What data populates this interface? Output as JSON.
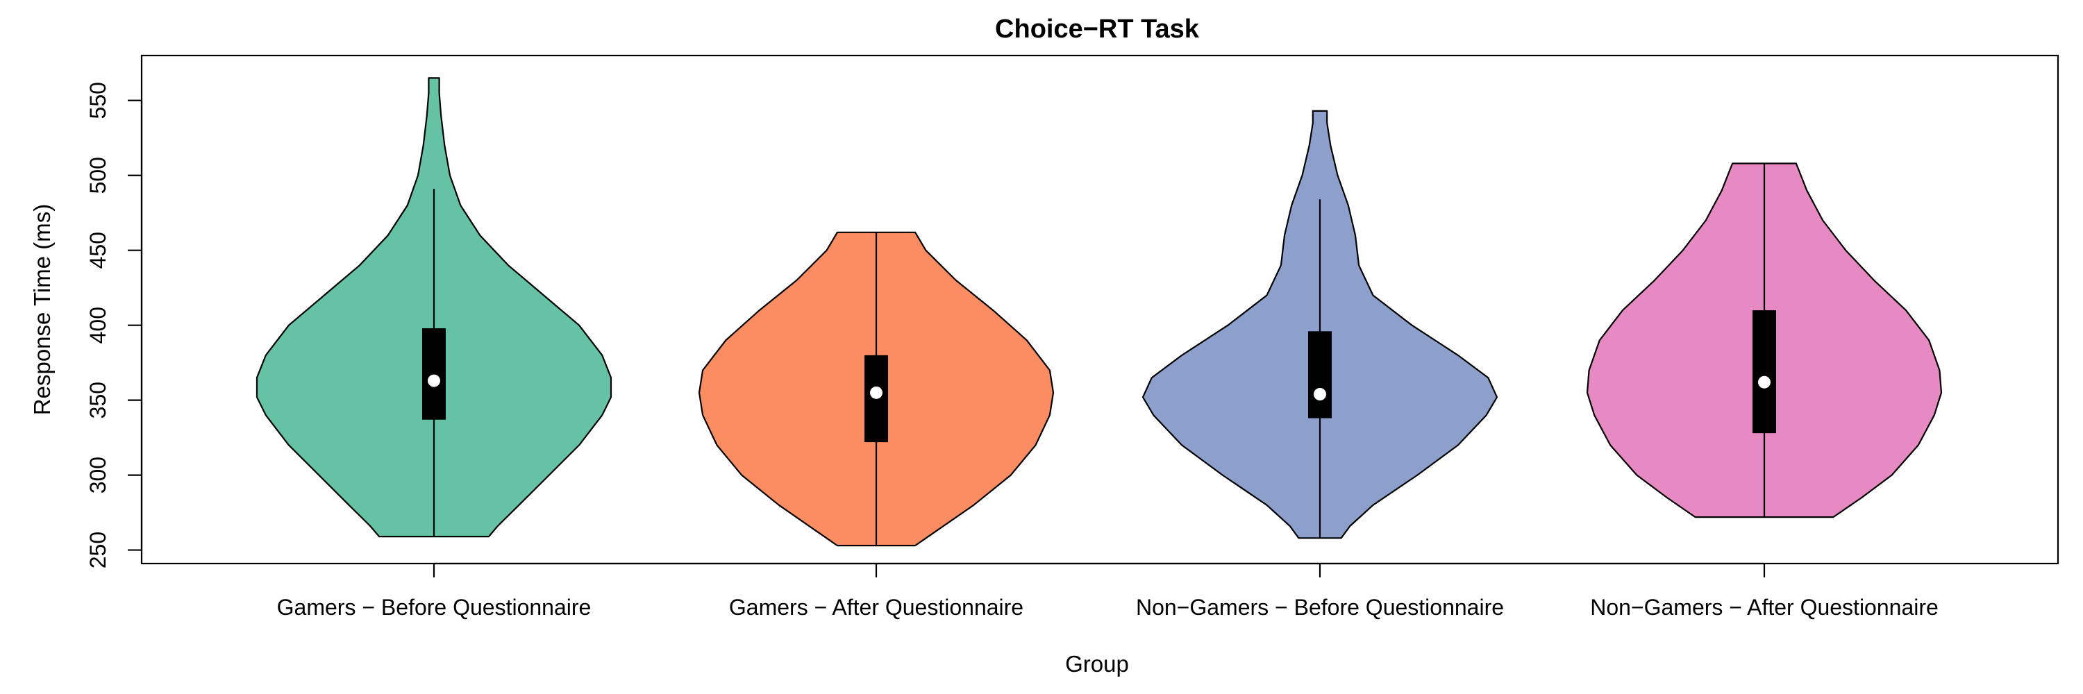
{
  "chart_data": {
    "type": "violin",
    "title": "Choice−RT Task",
    "xlabel": "Group",
    "ylabel": "Response Time (ms)",
    "ylim": [
      241,
      580
    ],
    "yticks": [
      250,
      300,
      350,
      400,
      450,
      500,
      550
    ],
    "categories": [
      "Gamers − Before Questionnaire",
      "Gamers − After Questionnaire",
      "Non−Gamers − Before Questionnaire",
      "Non−Gamers − After Questionnaire"
    ],
    "series": [
      {
        "color": "#66C2A5",
        "min": 259,
        "q1": 337,
        "median": 363,
        "q3": 398,
        "whisker_high": 491,
        "max": 565,
        "density": [
          [
            259,
            0.31
          ],
          [
            266,
            0.36
          ],
          [
            280,
            0.48
          ],
          [
            300,
            0.65
          ],
          [
            320,
            0.82
          ],
          [
            340,
            0.95
          ],
          [
            352,
            1.0
          ],
          [
            365,
            1.0
          ],
          [
            380,
            0.95
          ],
          [
            400,
            0.82
          ],
          [
            420,
            0.62
          ],
          [
            440,
            0.42
          ],
          [
            460,
            0.26
          ],
          [
            480,
            0.15
          ],
          [
            500,
            0.09
          ],
          [
            520,
            0.06
          ],
          [
            540,
            0.04
          ],
          [
            555,
            0.03
          ],
          [
            565,
            0.03
          ]
        ]
      },
      {
        "color": "#FC8D62",
        "min": 253,
        "q1": 322,
        "median": 355,
        "q3": 380,
        "whisker_high": 462,
        "max": 462,
        "density": [
          [
            253,
            0.22
          ],
          [
            262,
            0.33
          ],
          [
            280,
            0.55
          ],
          [
            300,
            0.76
          ],
          [
            320,
            0.9
          ],
          [
            340,
            0.98
          ],
          [
            355,
            1.0
          ],
          [
            370,
            0.98
          ],
          [
            390,
            0.85
          ],
          [
            410,
            0.66
          ],
          [
            430,
            0.45
          ],
          [
            450,
            0.28
          ],
          [
            462,
            0.22
          ]
        ]
      },
      {
        "color": "#8DA0CB",
        "min": 258,
        "q1": 338,
        "median": 354,
        "q3": 396,
        "whisker_high": 484,
        "max": 543,
        "density": [
          [
            258,
            0.12
          ],
          [
            266,
            0.17
          ],
          [
            280,
            0.3
          ],
          [
            300,
            0.55
          ],
          [
            320,
            0.78
          ],
          [
            340,
            0.94
          ],
          [
            352,
            1.0
          ],
          [
            365,
            0.95
          ],
          [
            380,
            0.78
          ],
          [
            400,
            0.52
          ],
          [
            420,
            0.3
          ],
          [
            440,
            0.22
          ],
          [
            460,
            0.2
          ],
          [
            480,
            0.16
          ],
          [
            500,
            0.1
          ],
          [
            520,
            0.06
          ],
          [
            535,
            0.04
          ],
          [
            543,
            0.04
          ]
        ]
      },
      {
        "color": "#E78AC3",
        "min": 272,
        "q1": 328,
        "median": 362,
        "q3": 410,
        "whisker_high": 508,
        "max": 508,
        "density": [
          [
            272,
            0.39
          ],
          [
            285,
            0.55
          ],
          [
            300,
            0.72
          ],
          [
            320,
            0.87
          ],
          [
            340,
            0.96
          ],
          [
            355,
            1.0
          ],
          [
            370,
            0.99
          ],
          [
            390,
            0.93
          ],
          [
            410,
            0.8
          ],
          [
            430,
            0.62
          ],
          [
            450,
            0.46
          ],
          [
            470,
            0.33
          ],
          [
            490,
            0.24
          ],
          [
            508,
            0.18
          ]
        ]
      }
    ]
  }
}
